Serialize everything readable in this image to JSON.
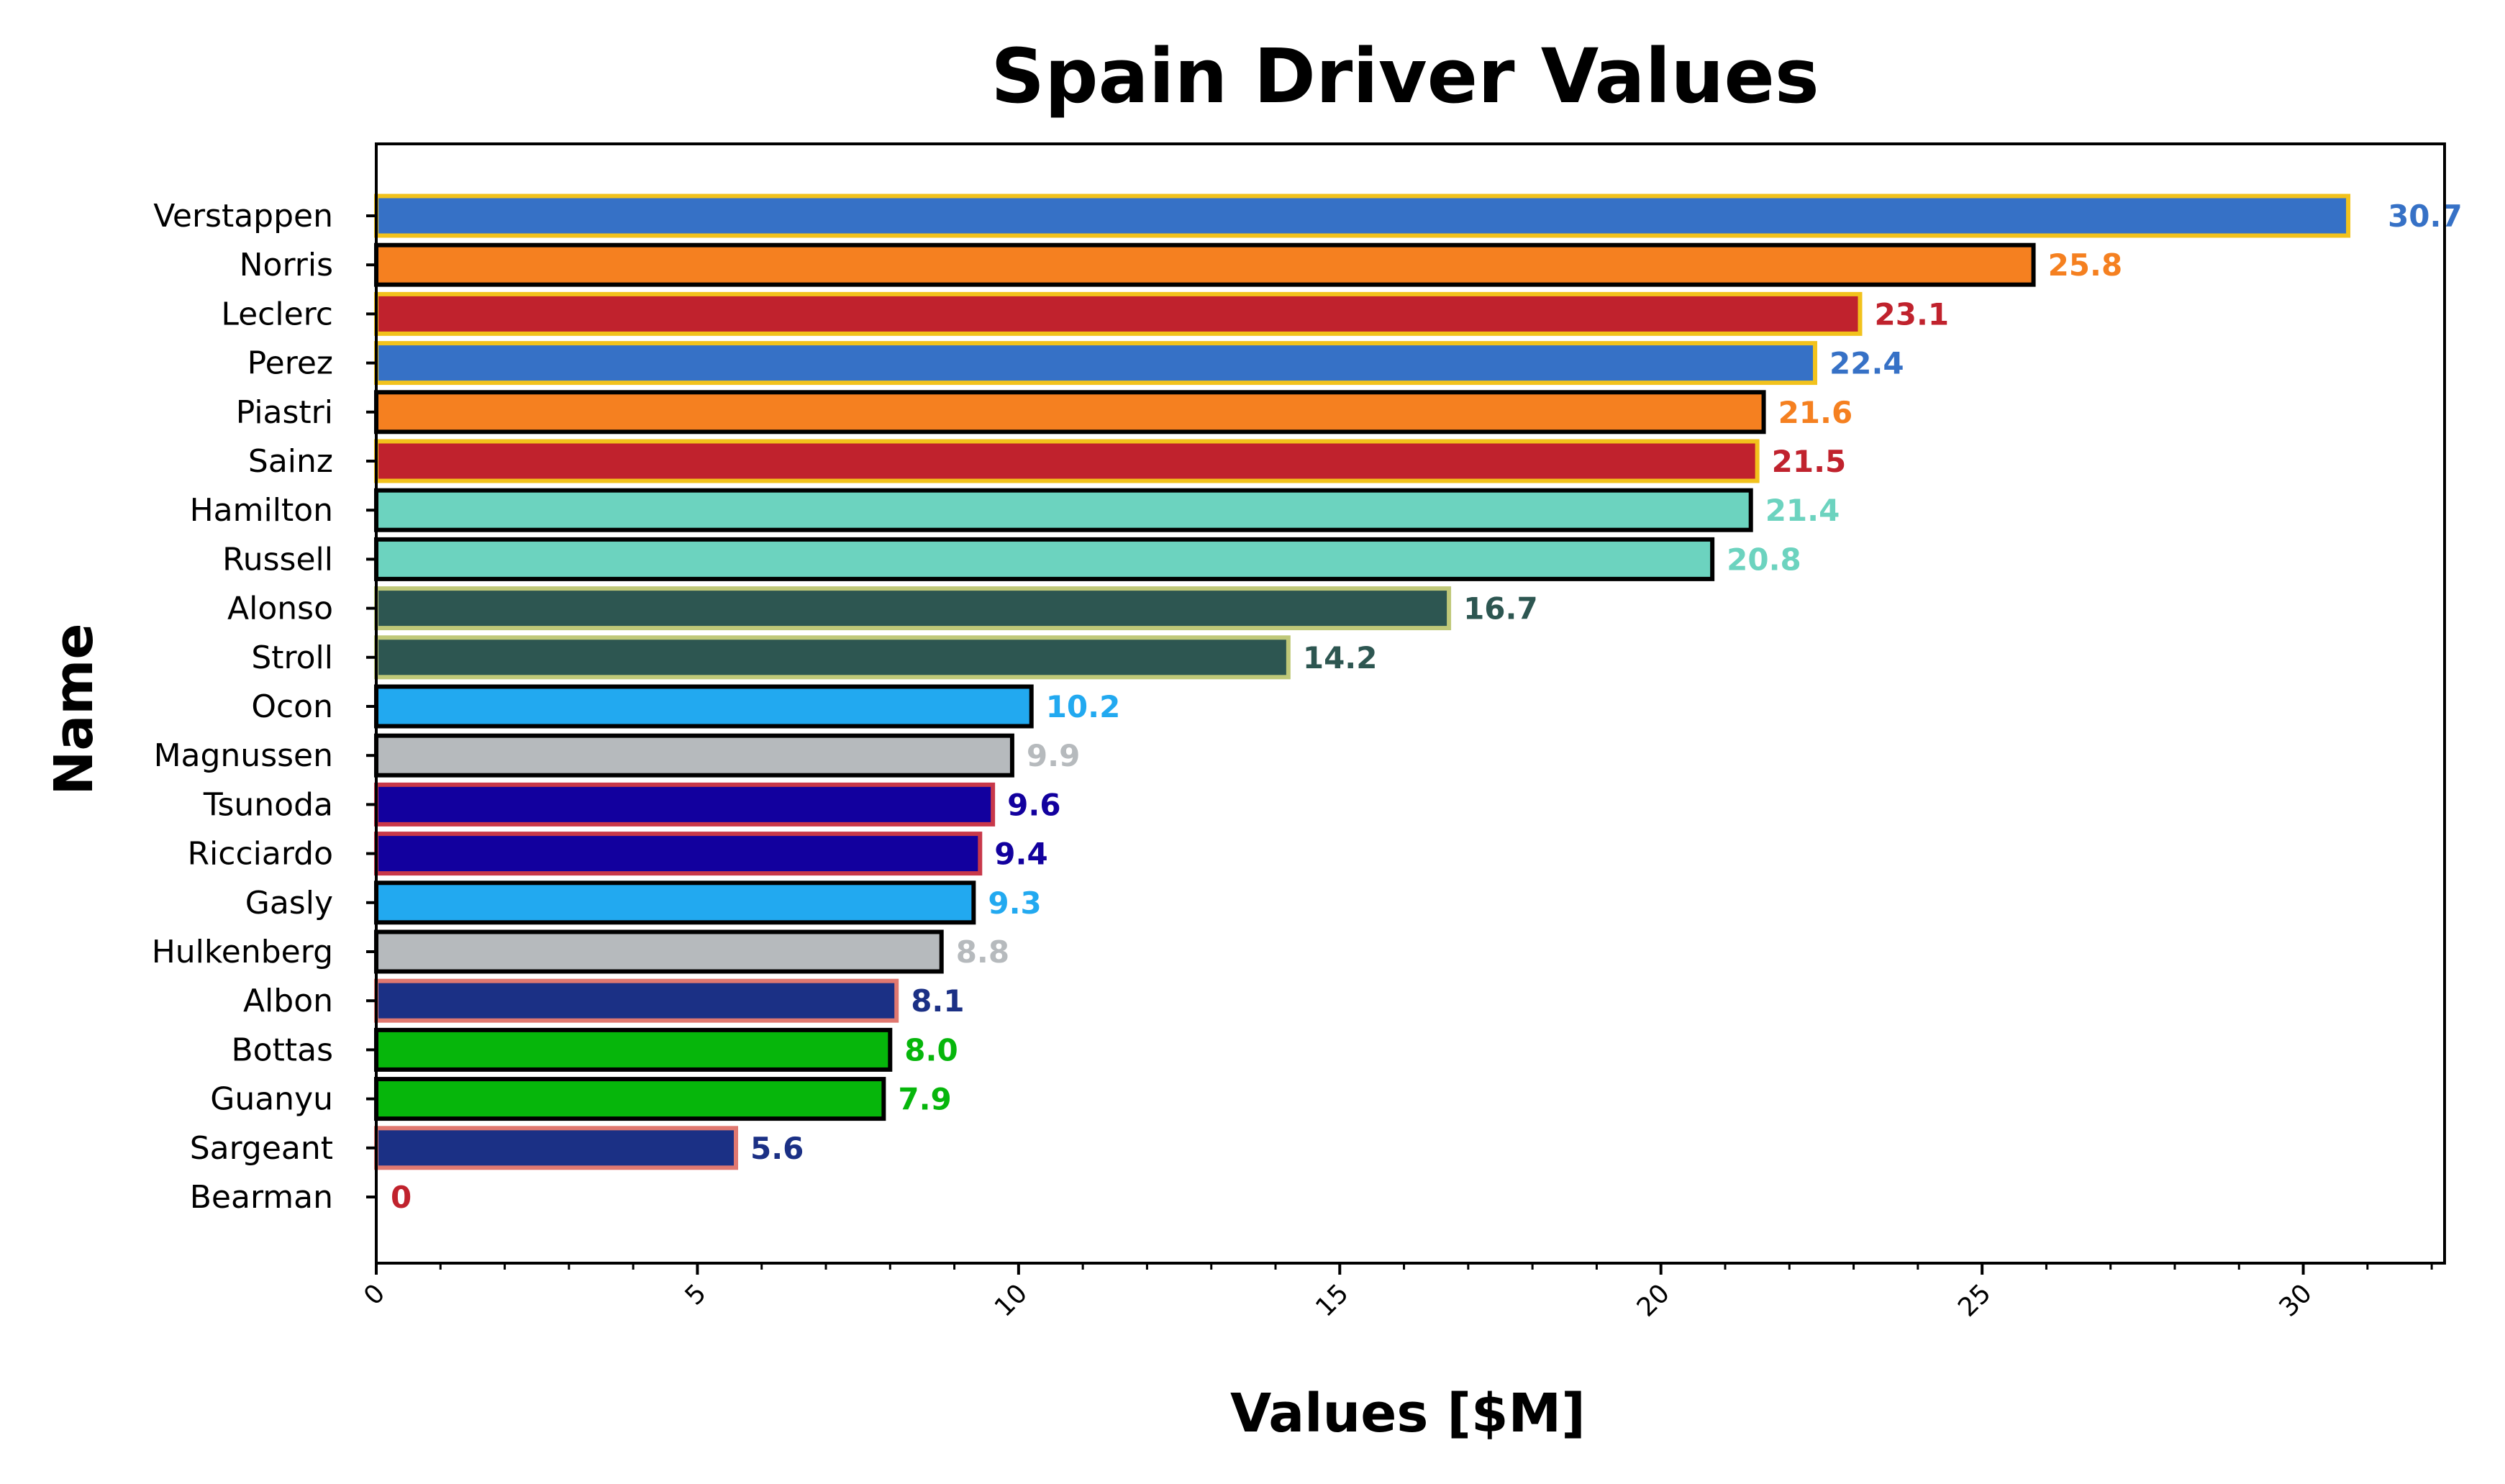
{
  "chart_data": {
    "type": "bar",
    "orientation": "horizontal",
    "title": "Spain Driver Values",
    "xlabel": "Values [$M]",
    "ylabel": "Name",
    "xlim": [
      0,
      32.2
    ],
    "xticks": [
      0,
      5,
      10,
      15,
      20,
      25,
      30
    ],
    "xtick_labels": [
      "0",
      "5",
      "10",
      "15",
      "20",
      "25",
      "30"
    ],
    "grid": false,
    "legend": "none",
    "categories": [
      "Verstappen",
      "Norris",
      "Leclerc",
      "Perez",
      "Piastri",
      "Sainz",
      "Hamilton",
      "Russell",
      "Alonso",
      "Stroll",
      "Ocon",
      "Magnussen",
      "Tsunoda",
      "Ricciardo",
      "Gasly",
      "Hulkenberg",
      "Albon",
      "Bottas",
      "Guanyu",
      "Sargeant",
      "Bearman"
    ],
    "values": [
      30.7,
      25.8,
      23.1,
      22.4,
      21.6,
      21.5,
      21.4,
      20.8,
      16.7,
      14.2,
      10.2,
      9.9,
      9.6,
      9.4,
      9.3,
      8.8,
      8.1,
      8.0,
      7.9,
      5.6,
      0
    ],
    "value_labels": [
      "30.7",
      "25.8",
      "23.1",
      "22.4",
      "21.6",
      "21.5",
      "21.4",
      "20.8",
      "16.7",
      "14.2",
      "10.2",
      "9.9",
      "9.6",
      "9.4",
      "9.3",
      "8.8",
      "8.1",
      "8.0",
      "7.9",
      "5.6",
      "0"
    ],
    "bar_colors": [
      "#3671C6",
      "#F58020",
      "#C0222D",
      "#3671C6",
      "#F58020",
      "#C0222D",
      "#6CD3BF",
      "#6CD3BF",
      "#2D5651",
      "#2D5651",
      "#22A9F0",
      "#B6BABD",
      "#12009E",
      "#12009E",
      "#22A9F0",
      "#B6BABD",
      "#1B3085",
      "#06B60B",
      "#06B60B",
      "#1B3085",
      "#C0222D"
    ],
    "label_colors": [
      "#3671C6",
      "#F58020",
      "#C0222D",
      "#3671C6",
      "#F58020",
      "#C0222D",
      "#6CD3BF",
      "#6CD3BF",
      "#2D5651",
      "#2D5651",
      "#22A9F0",
      "#B6BABD",
      "#12009E",
      "#12009E",
      "#22A9F0",
      "#B6BABD",
      "#1B3085",
      "#06B60B",
      "#06B60B",
      "#1B3085",
      "#C0222D"
    ],
    "edge_colors": [
      "#F2C21C",
      "#000000",
      "#F2C21C",
      "#F2C21C",
      "#000000",
      "#F2C21C",
      "#000000",
      "#000000",
      "#BFC878",
      "#BFC878",
      "#000000",
      "#000000",
      "#C8384A",
      "#C8384A",
      "#000000",
      "#000000",
      "#E07870",
      "#000000",
      "#000000",
      "#E07870",
      "#E07870"
    ]
  }
}
